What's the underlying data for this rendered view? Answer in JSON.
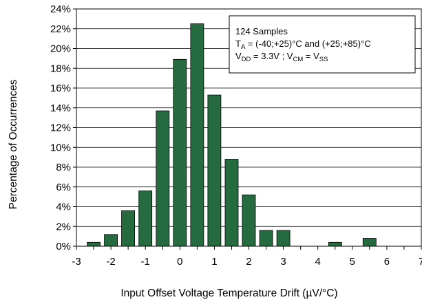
{
  "chart_data": {
    "type": "bar",
    "xlabel": "Input Offset Voltage Temperature Drift (µV/°C)",
    "ylabel": "Percentage of Occurrences",
    "ylim": [
      0,
      24
    ],
    "xlim": [
      -3,
      7
    ],
    "y_ticks": [
      "0%",
      "2%",
      "4%",
      "6%",
      "8%",
      "10%",
      "12%",
      "14%",
      "16%",
      "18%",
      "20%",
      "22%",
      "24%"
    ],
    "x_ticks": [
      "-3",
      "-2",
      "-1",
      "0",
      "1",
      "2",
      "3",
      "4",
      "5",
      "6",
      "7"
    ],
    "bar_color": "#256b3f",
    "grid": "horizontal",
    "x": [
      -2.5,
      -2.0,
      -1.5,
      -1.0,
      -0.5,
      0.0,
      0.5,
      1.0,
      1.5,
      2.0,
      2.5,
      3.0,
      3.5,
      4.0,
      4.5,
      5.0,
      5.5,
      6.0,
      6.5
    ],
    "values": [
      0.4,
      1.2,
      3.6,
      5.6,
      13.7,
      18.9,
      22.5,
      15.3,
      8.8,
      5.2,
      1.6,
      1.6,
      0,
      0,
      0.4,
      0,
      0.8,
      0,
      0
    ],
    "annotation": {
      "line1": "124 Samples",
      "line2": {
        "pre": "T",
        "sub": "A",
        "post": " = (-40;+25)°C and (+25;+85)°C"
      },
      "line3": {
        "p1": "V",
        "s1": "DD",
        "p2": " = 3.3V ; V",
        "s2": "CM",
        "p3": " = V",
        "s3": "SS"
      }
    }
  }
}
